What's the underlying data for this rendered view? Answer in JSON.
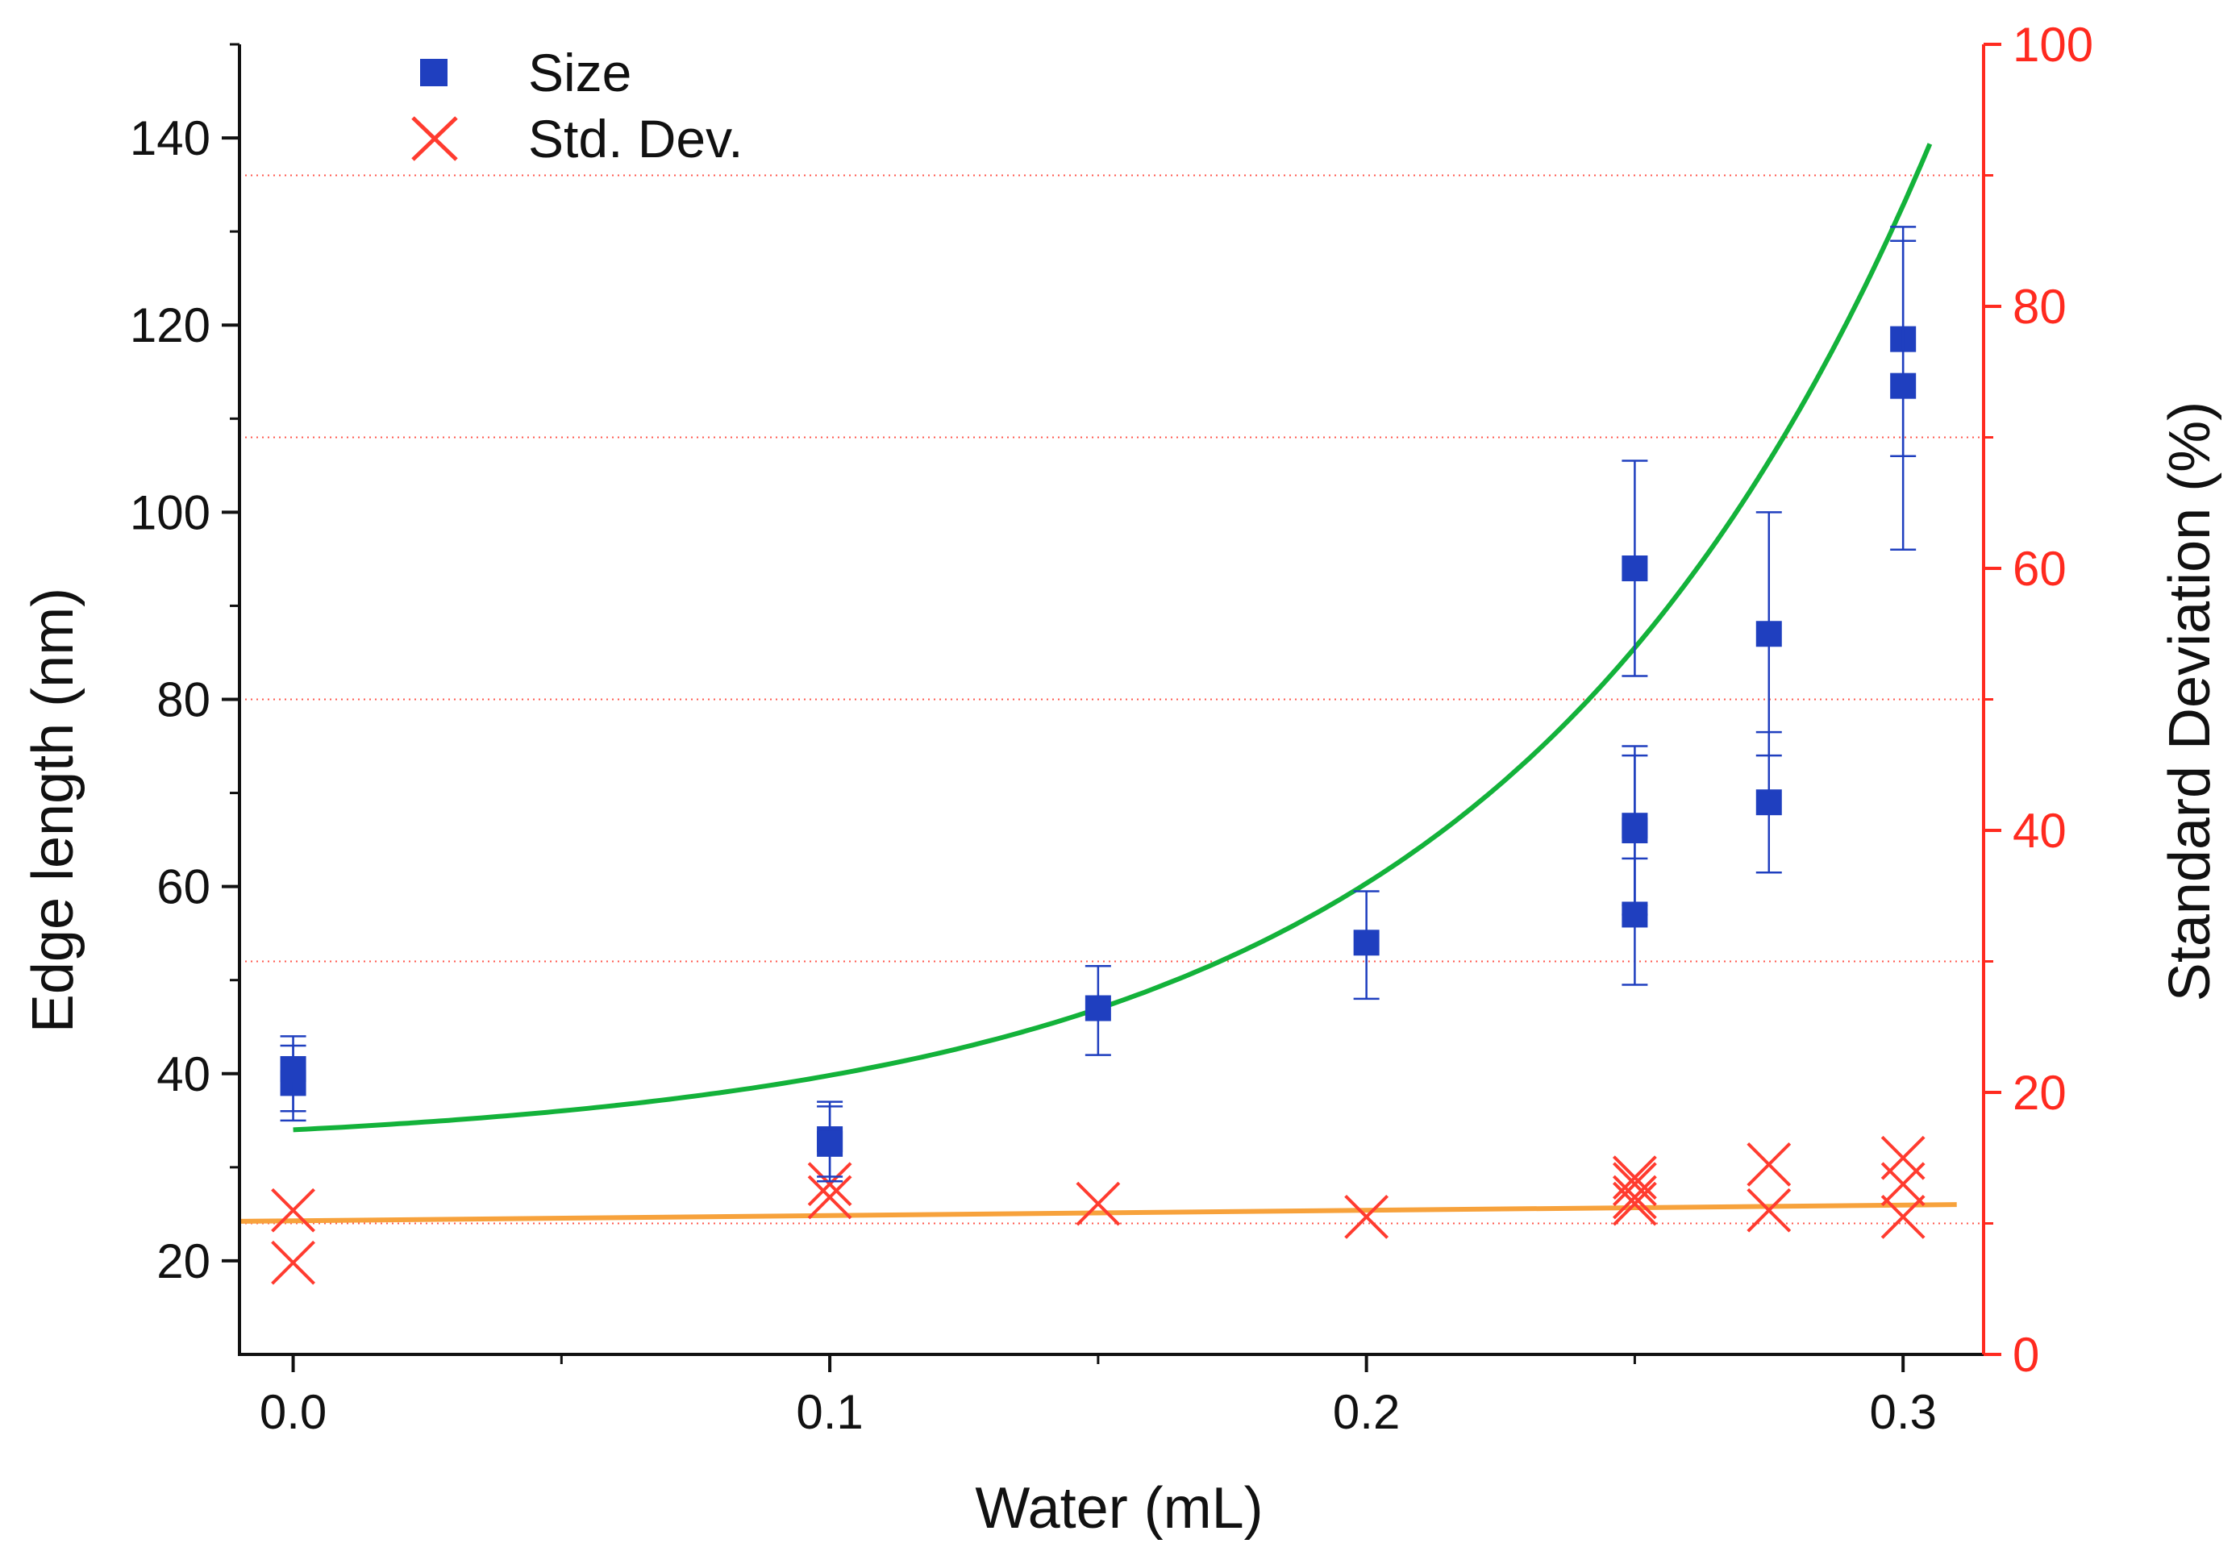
{
  "colors": {
    "size": "#1f3fbf",
    "std": "#ff3b2f",
    "fit_size": "#13b23a",
    "fit_std": "#f7a23c",
    "right_axis": "#ff2a1f",
    "left_axis": "#111111",
    "grid": "#ff5a4f"
  },
  "chart_data": {
    "type": "scatter",
    "title": "",
    "xlabel": "Water (mL)",
    "ylabel_left": "Edge length (nm)",
    "ylabel_right": "Standard Deviation (%)",
    "xlim": [
      -0.01,
      0.315
    ],
    "ylim_left": [
      10,
      150
    ],
    "ylim_right": [
      0,
      100
    ],
    "x_ticks": [
      "0.0",
      "0.1",
      "0.2",
      "0.3"
    ],
    "x_tick_values": [
      0,
      0.1,
      0.2,
      0.3
    ],
    "y_left_ticks": [
      "20",
      "40",
      "60",
      "80",
      "100",
      "120",
      "140"
    ],
    "y_left_tick_values": [
      20,
      40,
      60,
      80,
      100,
      120,
      140
    ],
    "y_right_ticks": [
      "0",
      "20",
      "40",
      "60",
      "80",
      "100"
    ],
    "y_right_tick_values": [
      0,
      20,
      40,
      60,
      80,
      100
    ],
    "grid": "right axis dotted lines at 10, 30, 50, 70, 90",
    "grid_values_right": [
      10,
      30,
      50,
      70,
      90
    ],
    "legend": {
      "position": "top-left",
      "entries": [
        "Size",
        "Std. Dev."
      ]
    },
    "series": [
      {
        "name": "Size",
        "axis": "left",
        "marker": "square",
        "points": [
          {
            "x": 0.0,
            "y": 39,
            "err_low": 35,
            "err_high": 43
          },
          {
            "x": 0.0,
            "y": 40.5,
            "err_low": 36,
            "err_high": 44
          },
          {
            "x": 0.1,
            "y": 33,
            "err_low": 29,
            "err_high": 37
          },
          {
            "x": 0.1,
            "y": 32.5,
            "err_low": 28.5,
            "err_high": 36.5
          },
          {
            "x": 0.15,
            "y": 47,
            "err_low": 42,
            "err_high": 51.5
          },
          {
            "x": 0.2,
            "y": 54,
            "err_low": 48,
            "err_high": 59.5
          },
          {
            "x": 0.25,
            "y": 94,
            "err_low": 82.5,
            "err_high": 105.5
          },
          {
            "x": 0.25,
            "y": 66.5,
            "err_low": 58,
            "err_high": 75
          },
          {
            "x": 0.25,
            "y": 66,
            "err_low": 57,
            "err_high": 74
          },
          {
            "x": 0.25,
            "y": 57,
            "err_low": 49.5,
            "err_high": 63
          },
          {
            "x": 0.275,
            "y": 87,
            "err_low": 74,
            "err_high": 100
          },
          {
            "x": 0.275,
            "y": 69,
            "err_low": 61.5,
            "err_high": 76.5
          },
          {
            "x": 0.3,
            "y": 118.5,
            "err_low": 106,
            "err_high": 130.5
          },
          {
            "x": 0.3,
            "y": 113.5,
            "err_low": 96,
            "err_high": 129
          }
        ]
      },
      {
        "name": "Std. Dev.",
        "axis": "right",
        "marker": "x",
        "points": [
          {
            "x": 0.0,
            "y": 11
          },
          {
            "x": 0.0,
            "y": 7
          },
          {
            "x": 0.1,
            "y": 12
          },
          {
            "x": 0.1,
            "y": 13
          },
          {
            "x": 0.15,
            "y": 11.5
          },
          {
            "x": 0.2,
            "y": 10.5
          },
          {
            "x": 0.25,
            "y": 11.5
          },
          {
            "x": 0.25,
            "y": 12
          },
          {
            "x": 0.25,
            "y": 13
          },
          {
            "x": 0.25,
            "y": 13.5
          },
          {
            "x": 0.275,
            "y": 11
          },
          {
            "x": 0.275,
            "y": 14.5
          },
          {
            "x": 0.3,
            "y": 10.5
          },
          {
            "x": 0.3,
            "y": 13
          },
          {
            "x": 0.3,
            "y": 15
          }
        ]
      }
    ],
    "fits": [
      {
        "name": "Size fit",
        "axis": "left",
        "kind": "exponential",
        "description": "y = 31.7 + 2.3*exp(x/0.0793)",
        "params": {
          "y0": 31.7,
          "A": 2.3,
          "t": 0.0793
        },
        "x_range": [
          0.0,
          0.305
        ]
      },
      {
        "name": "Std. Dev. fit",
        "axis": "right",
        "kind": "linear",
        "description": "y = 10.2 + 4.0*x",
        "params": {
          "intercept": 10.2,
          "slope": 4.0
        },
        "x_range": [
          -0.01,
          0.31
        ]
      }
    ]
  }
}
